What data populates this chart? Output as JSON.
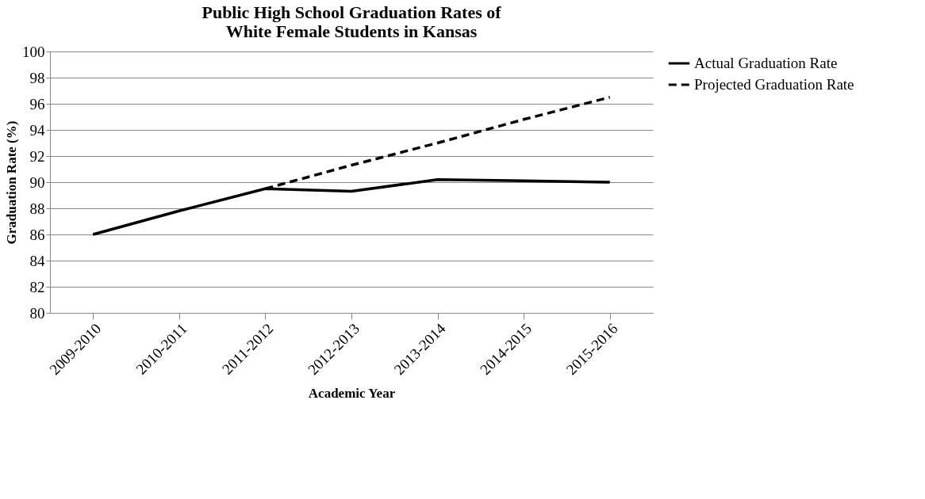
{
  "chart_data": {
    "type": "line",
    "title": [
      "Public High School Graduation Rates of",
      "White Female Students in Kansas"
    ],
    "xlabel": "Academic Year",
    "ylabel": "Graduation Rate (%)",
    "categories": [
      "2009-2010",
      "2010-2011",
      "2011-2012",
      "2012-2013",
      "2013-2014",
      "2014-2015",
      "2015-2016"
    ],
    "series": [
      {
        "name": "Actual Graduation Rate",
        "color": "#000000",
        "line_style": "solid",
        "values": [
          86.0,
          87.8,
          89.5,
          89.3,
          90.2,
          90.1,
          90.0
        ]
      },
      {
        "name": "Projected Graduation Rate",
        "color": "#000000",
        "line_style": "dashed",
        "values": [
          null,
          null,
          89.5,
          91.3,
          93.0,
          94.8,
          96.5
        ]
      }
    ],
    "ylim": [
      80,
      100
    ],
    "yticks": [
      80,
      82,
      84,
      86,
      88,
      90,
      92,
      94,
      96,
      98,
      100
    ],
    "grid": "y",
    "legend": "right",
    "marker": "none"
  }
}
